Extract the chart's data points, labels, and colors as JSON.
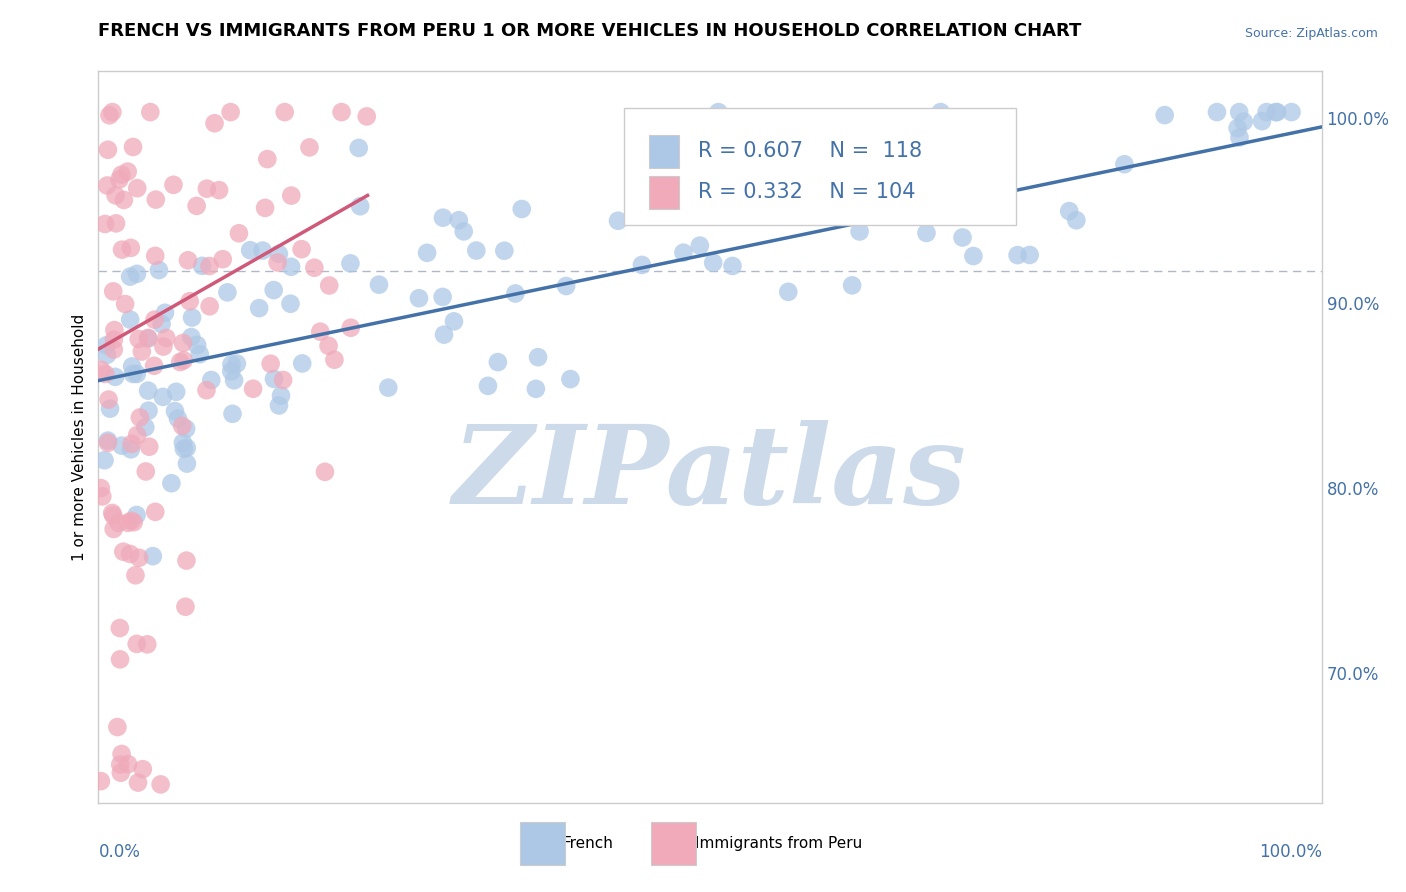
{
  "title": "FRENCH VS IMMIGRANTS FROM PERU 1 OR MORE VEHICLES IN HOUSEHOLD CORRELATION CHART",
  "source_text": "Source: ZipAtlas.com",
  "ylabel": "1 or more Vehicles in Household",
  "legend_blue_R": "R = 0.607",
  "legend_blue_N": "N =  118",
  "legend_pink_R": "R = 0.332",
  "legend_pink_N": "N = 104",
  "blue_color": "#adc8e6",
  "blue_line_color": "#4472a8",
  "pink_color": "#f0aaba",
  "pink_line_color": "#d05878",
  "watermark_color": "#ccdaea",
  "background_color": "#ffffff",
  "xlim": [
    0.0,
    1.0
  ],
  "ylim": [
    0.63,
    1.025
  ],
  "dashed_line_y": 0.917,
  "title_fontsize": 13,
  "label_fontsize": 11,
  "tick_fontsize": 12,
  "legend_fontsize": 15,
  "right_ytick_color": "#4472a8",
  "xlabel_color": "#4472a8",
  "source_color": "#4472a8",
  "right_ytick_values": [
    0.7,
    0.8,
    0.9,
    1.0
  ],
  "right_ytick_labels": [
    "70.0%",
    "80.0%",
    "90.0%",
    "100.0%"
  ]
}
